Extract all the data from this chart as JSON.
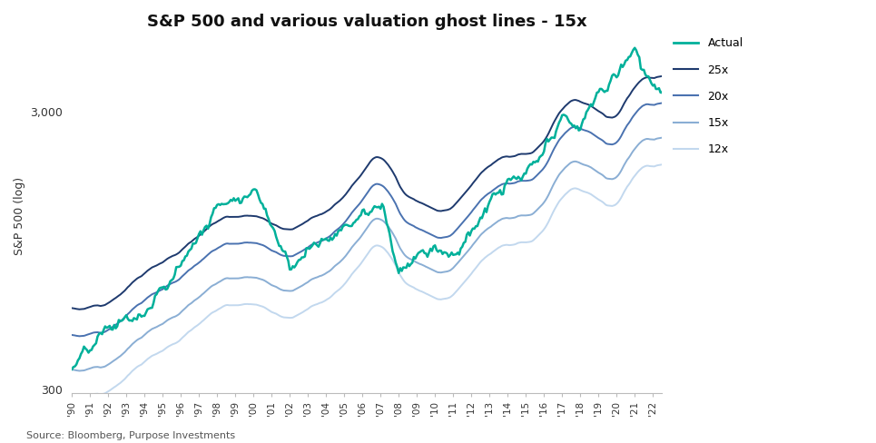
{
  "title": "S&P 500 and various valuation ghost lines - 15x",
  "ylabel": "S&P 500 (log)",
  "source": "Source: Bloomberg, Purpose Investments",
  "background_color": "#ffffff",
  "title_fontsize": 13,
  "ylabel_fontsize": 9,
  "ytick_labels": [
    "300",
    "3,000"
  ],
  "ylim_log": [
    290,
    5500
  ],
  "colors": {
    "actual": "#00b09a",
    "x25": "#1e3a6e",
    "x20": "#4a72b0",
    "x15": "#8aaed4",
    "x12": "#c2d8ee"
  },
  "line_widths": {
    "actual": 1.8,
    "ghost": 1.4
  },
  "sp500_years": [
    1990,
    1991,
    1992,
    1993,
    1994,
    1995,
    1996,
    1997,
    1998,
    1999,
    2000,
    2001,
    2002,
    2003,
    2004,
    2005,
    2006,
    2007,
    2008,
    2009,
    2010,
    2011,
    2012,
    2013,
    2014,
    2015,
    2016,
    2017,
    2018,
    2019,
    2020,
    2021,
    2022
  ],
  "sp500_vals": [
    353,
    375,
    416,
    451,
    460,
    541,
    670,
    873,
    1086,
    1327,
    1469,
    1148,
    880,
    1012,
    1132,
    1248,
    1418,
    1468,
    903,
    1115,
    1258,
    1258,
    1426,
    1848,
    2059,
    2044,
    2239,
    2674,
    2507,
    3231,
    3756,
    4766,
    3840
  ]
}
